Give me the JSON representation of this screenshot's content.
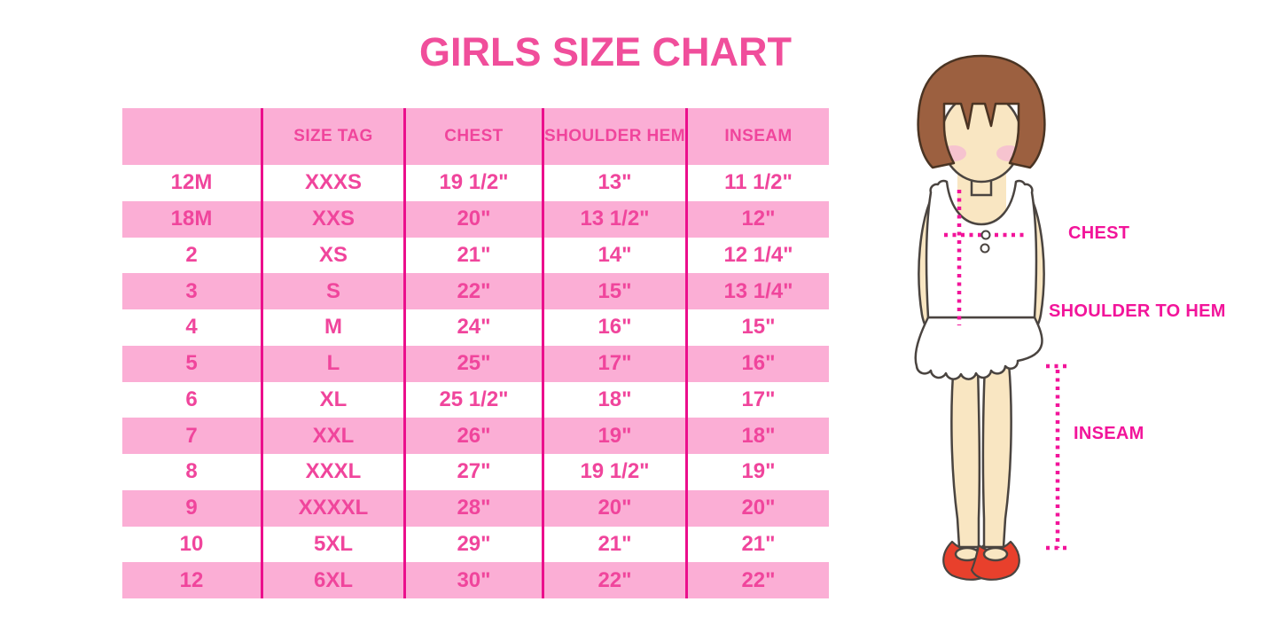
{
  "title": "GIRLS SIZE CHART",
  "colors": {
    "title-pink": "#F04E9B",
    "cell-text": "#F0459C",
    "row-pink": "#FBAED5",
    "border-magenta": "#EB0F8C",
    "label-magenta": "#F2149A",
    "hair": "#9C6040",
    "hair-outline": "#4A3423",
    "skin": "#F9E6C2",
    "blush": "#F6C3CF",
    "shoe": "#E8402C",
    "outline": "#4A4440"
  },
  "table": {
    "headers": [
      "",
      "SIZE TAG",
      "CHEST",
      "SHOULDER HEM",
      "INSEAM"
    ],
    "rows": [
      [
        "12M",
        "XXXS",
        "19 1/2\"",
        "13\"",
        "11 1/2\""
      ],
      [
        "18M",
        "XXS",
        "20\"",
        "13 1/2\"",
        "12\""
      ],
      [
        "2",
        "XS",
        "21\"",
        "14\"",
        "12 1/4\""
      ],
      [
        "3",
        "S",
        "22\"",
        "15\"",
        "13 1/4\""
      ],
      [
        "4",
        "M",
        "24\"",
        "16\"",
        "15\""
      ],
      [
        "5",
        "L",
        "25\"",
        "17\"",
        "16\""
      ],
      [
        "6",
        "XL",
        "25 1/2\"",
        "18\"",
        "17\""
      ],
      [
        "7",
        "XXL",
        "26\"",
        "19\"",
        "18\""
      ],
      [
        "8",
        "XXXL",
        "27\"",
        "19 1/2\"",
        "19\""
      ],
      [
        "9",
        "XXXXL",
        "28\"",
        "20\"",
        "20\""
      ],
      [
        "10",
        "5XL",
        "29\"",
        "21\"",
        "21\""
      ],
      [
        "12",
        "6XL",
        "30\"",
        "22\"",
        "22\""
      ]
    ]
  },
  "figure": {
    "labels": {
      "chest": "CHEST",
      "shoulder_to_hem": "SHOULDER TO HEM",
      "inseam": "INSEAM"
    }
  }
}
